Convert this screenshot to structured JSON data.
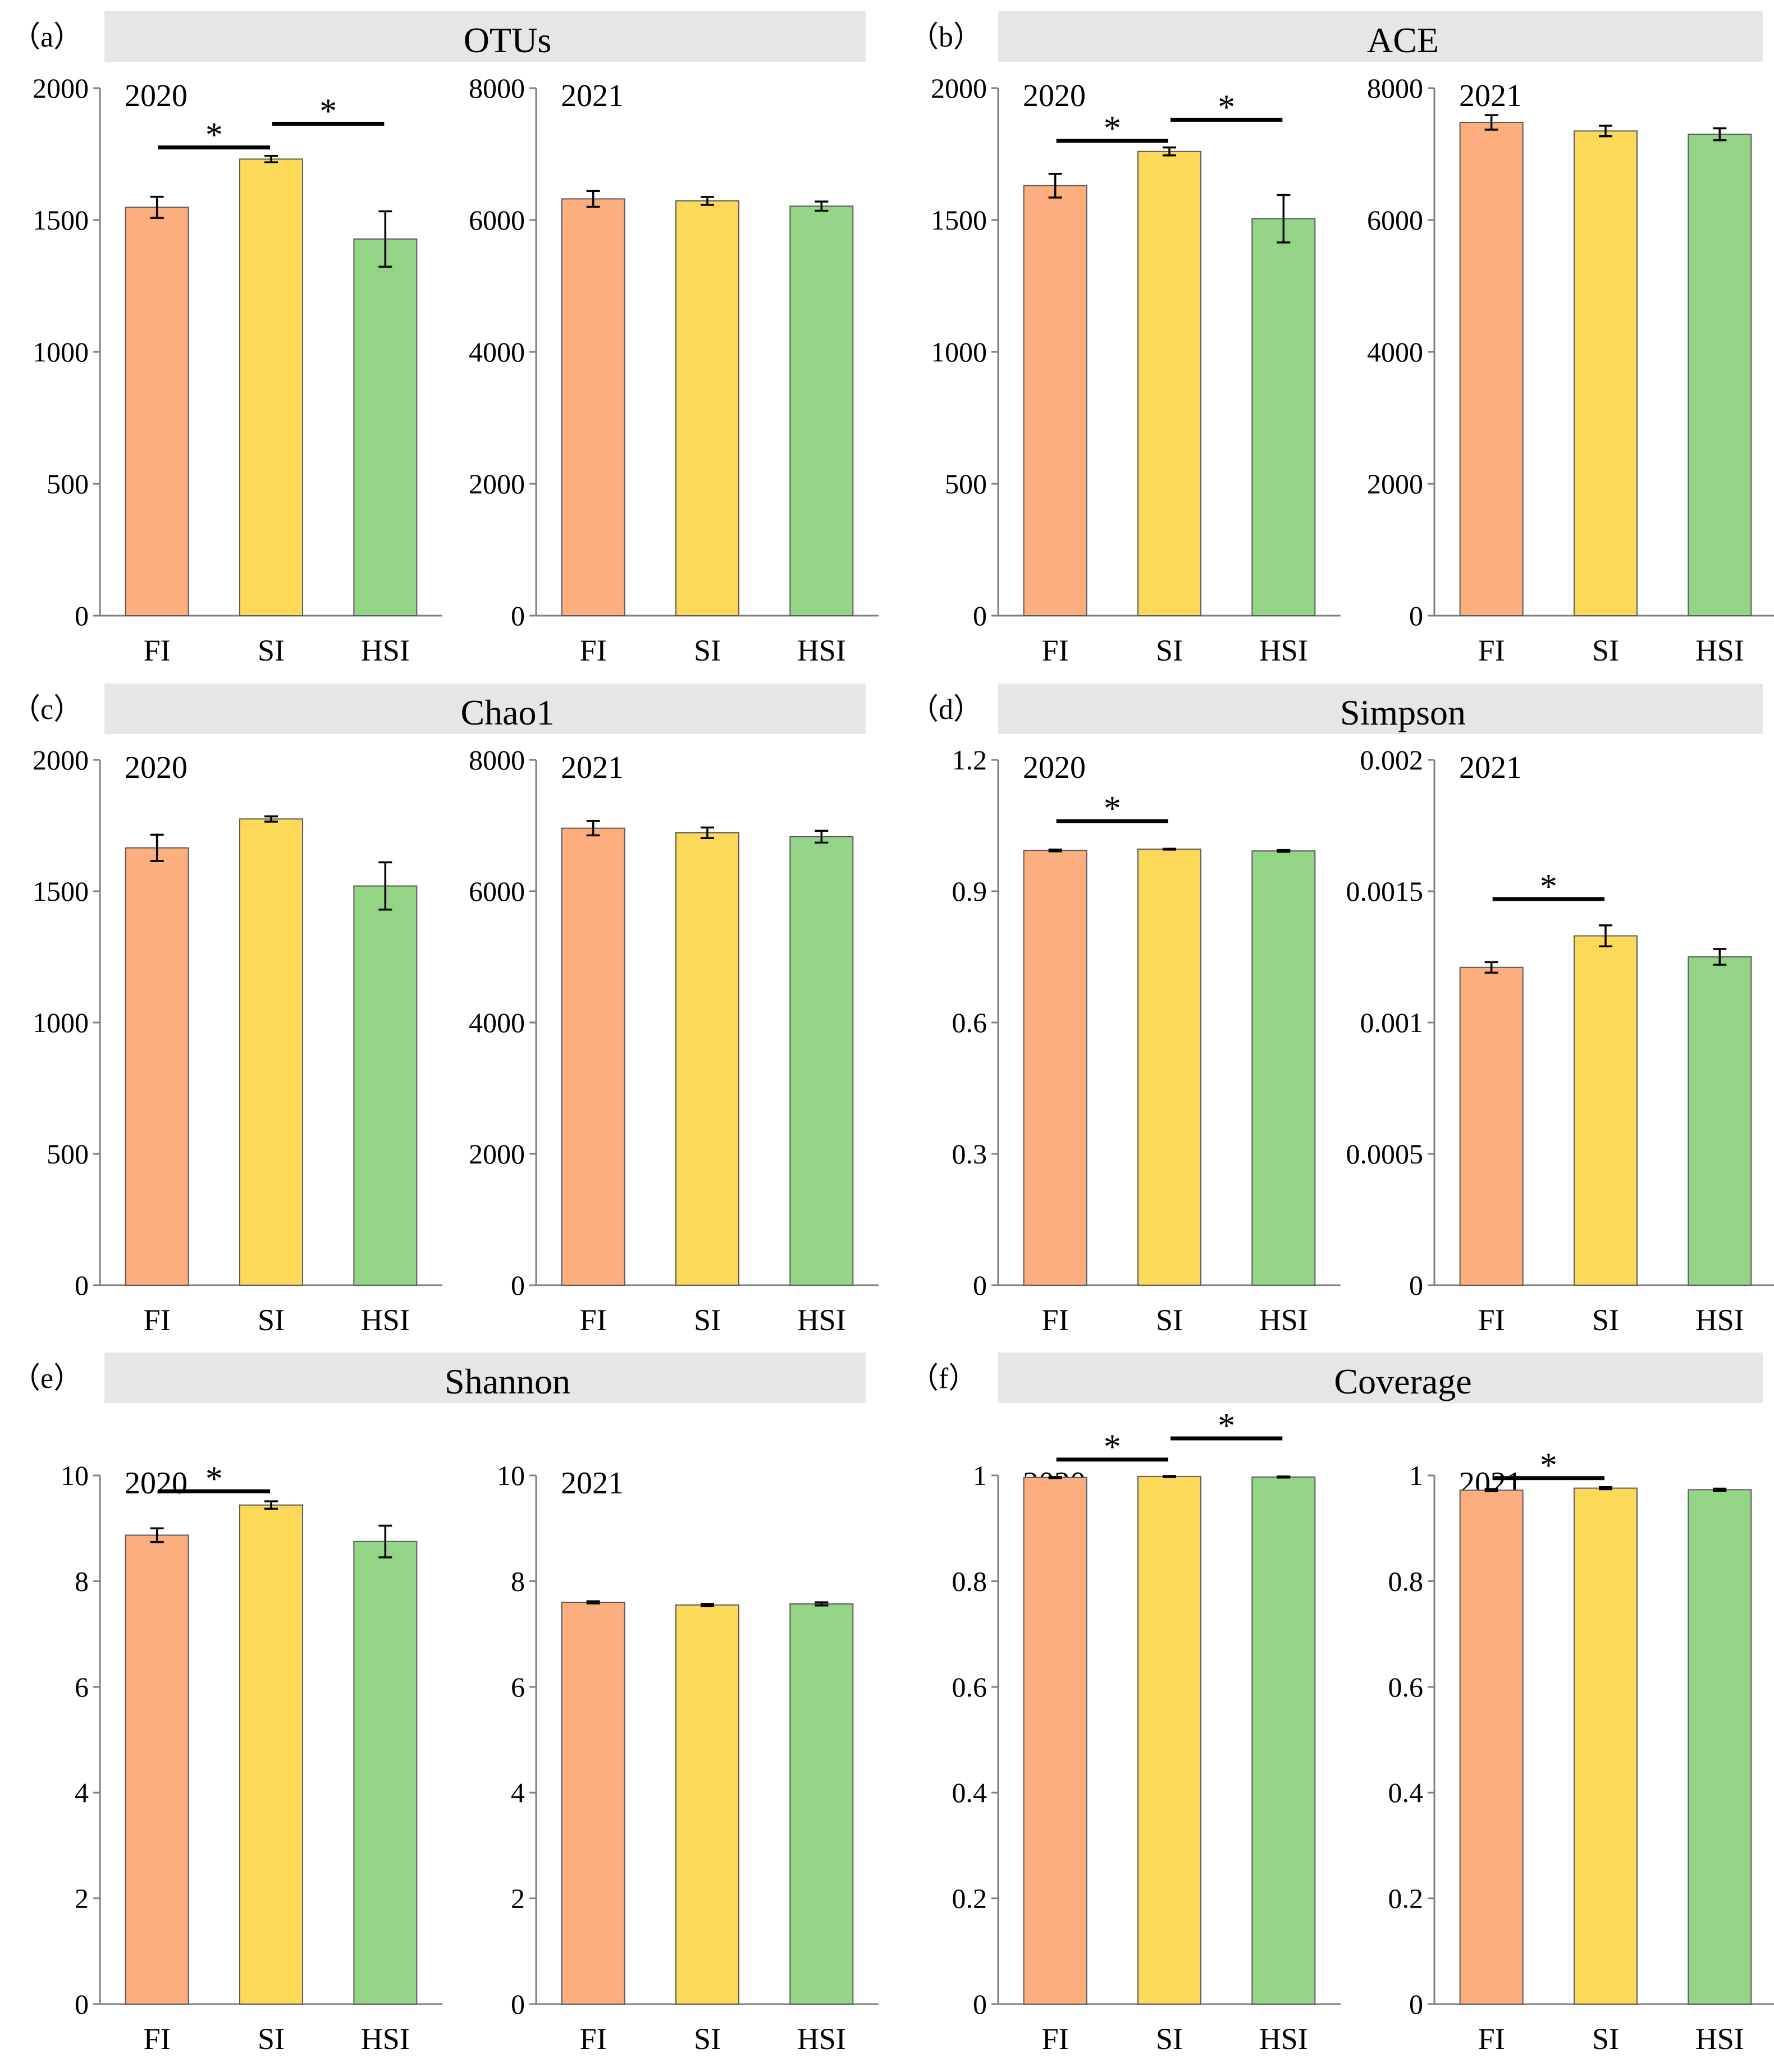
{
  "figure": {
    "groups": [
      "FI",
      "SI",
      "HSI"
    ],
    "colors": {
      "FI": "#FDAE7E",
      "SI": "#FDD95A",
      "HSI": "#93D487",
      "axis": "#7F7F7F",
      "title_bar": "#E6E6E6"
    }
  },
  "chart_data": [
    {
      "type": "bar",
      "panel": "a",
      "panel_label": "（a）",
      "title": "OTUs",
      "subplots": [
        {
          "year": "2020",
          "categories": [
            "FI",
            "SI",
            "HSI"
          ],
          "values": [
            1548,
            1731,
            1428
          ],
          "errors": [
            40,
            12,
            105
          ],
          "ylim": [
            0,
            2000
          ],
          "yticks": [
            0,
            500,
            1000,
            1500,
            2000
          ],
          "ytick_labels": [
            "0",
            "500",
            "1000",
            "1500",
            "2000"
          ],
          "significance": [
            {
              "between": [
                "FI",
                "SI"
              ],
              "label": "*",
              "y": 1775
            },
            {
              "between": [
                "SI",
                "HSI"
              ],
              "label": "*",
              "y": 1865
            }
          ]
        },
        {
          "year": "2021",
          "categories": [
            "FI",
            "SI",
            "HSI"
          ],
          "values": [
            6320,
            6290,
            6210
          ],
          "errors": [
            120,
            60,
            70
          ],
          "ylim": [
            0,
            8000
          ],
          "yticks": [
            0,
            2000,
            4000,
            6000,
            8000
          ],
          "ytick_labels": [
            "0",
            "2000",
            "4000",
            "6000",
            "8000"
          ],
          "significance": []
        }
      ]
    },
    {
      "type": "bar",
      "panel": "b",
      "panel_label": "（b）",
      "title": "ACE",
      "subplots": [
        {
          "year": "2020",
          "categories": [
            "FI",
            "SI",
            "HSI"
          ],
          "values": [
            1630,
            1760,
            1505
          ],
          "errors": [
            45,
            15,
            90
          ],
          "ylim": [
            0,
            2000
          ],
          "yticks": [
            0,
            500,
            1000,
            1500,
            2000
          ],
          "ytick_labels": [
            "0",
            "500",
            "1000",
            "1500",
            "2000"
          ],
          "significance": [
            {
              "between": [
                "FI",
                "SI"
              ],
              "label": "*",
              "y": 1800
            },
            {
              "between": [
                "SI",
                "HSI"
              ],
              "label": "*",
              "y": 1880
            }
          ]
        },
        {
          "year": "2021",
          "categories": [
            "FI",
            "SI",
            "HSI"
          ],
          "values": [
            7480,
            7350,
            7300
          ],
          "errors": [
            110,
            80,
            90
          ],
          "ylim": [
            0,
            8000
          ],
          "yticks": [
            0,
            2000,
            4000,
            6000,
            8000
          ],
          "ytick_labels": [
            "0",
            "2000",
            "4000",
            "6000",
            "8000"
          ],
          "significance": []
        }
      ]
    },
    {
      "type": "bar",
      "panel": "c",
      "panel_label": "（c）",
      "title": "Chao1",
      "subplots": [
        {
          "year": "2020",
          "categories": [
            "FI",
            "SI",
            "HSI"
          ],
          "values": [
            1665,
            1775,
            1520
          ],
          "errors": [
            50,
            10,
            90
          ],
          "ylim": [
            0,
            2000
          ],
          "yticks": [
            0,
            500,
            1000,
            1500,
            2000
          ],
          "ytick_labels": [
            "0",
            "500",
            "1000",
            "1500",
            "2000"
          ],
          "significance": []
        },
        {
          "year": "2021",
          "categories": [
            "FI",
            "SI",
            "HSI"
          ],
          "values": [
            6960,
            6890,
            6830
          ],
          "errors": [
            110,
            80,
            90
          ],
          "ylim": [
            0,
            8000
          ],
          "yticks": [
            0,
            2000,
            4000,
            6000,
            8000
          ],
          "ytick_labels": [
            "0",
            "2000",
            "4000",
            "6000",
            "8000"
          ],
          "significance": []
        }
      ]
    },
    {
      "type": "bar",
      "panel": "d",
      "panel_label": "（d）",
      "title": "Simpson",
      "subplots": [
        {
          "year": "2020",
          "categories": [
            "FI",
            "SI",
            "HSI"
          ],
          "values": [
            0.993,
            0.996,
            0.992
          ],
          "errors": [
            0.002,
            0.001,
            0.002
          ],
          "ylim": [
            0,
            1.2
          ],
          "yticks": [
            0,
            0.3,
            0.6,
            0.9,
            1.2
          ],
          "ytick_labels": [
            "0",
            "0.3",
            "0.6",
            "0.9",
            "1.2"
          ],
          "significance": [
            {
              "between": [
                "FI",
                "SI"
              ],
              "label": "*",
              "y": 1.06
            }
          ]
        },
        {
          "year": "2021",
          "categories": [
            "FI",
            "SI",
            "HSI"
          ],
          "values": [
            0.00121,
            0.00133,
            0.00125
          ],
          "errors": [
            2e-05,
            4e-05,
            3e-05
          ],
          "ylim": [
            0,
            0.002
          ],
          "yticks": [
            0,
            0.0005,
            0.001,
            0.0015,
            0.002
          ],
          "ytick_labels": [
            "0",
            "0.0005",
            "0.001",
            "0.0015",
            "0.002"
          ],
          "significance": [
            {
              "between": [
                "FI",
                "SI"
              ],
              "label": "*",
              "y": 0.00147
            }
          ]
        }
      ]
    },
    {
      "type": "bar",
      "panel": "e",
      "panel_label": "（e）",
      "title": "Shannon",
      "subplots": [
        {
          "year": "2020",
          "categories": [
            "FI",
            "SI",
            "HSI"
          ],
          "values": [
            8.87,
            9.44,
            8.75
          ],
          "errors": [
            0.13,
            0.07,
            0.3
          ],
          "ylim": [
            0,
            10
          ],
          "yticks": [
            0,
            2,
            4,
            6,
            8,
            10
          ],
          "ytick_labels": [
            "0",
            "2",
            "4",
            "6",
            "8",
            "10"
          ],
          "significance": [
            {
              "between": [
                "FI",
                "SI"
              ],
              "label": "*",
              "y": 9.7
            }
          ]
        },
        {
          "year": "2021",
          "categories": [
            "FI",
            "SI",
            "HSI"
          ],
          "values": [
            7.6,
            7.55,
            7.57
          ],
          "errors": [
            0.02,
            0.02,
            0.03
          ],
          "ylim": [
            0,
            10
          ],
          "yticks": [
            0,
            2,
            4,
            6,
            8,
            10
          ],
          "ytick_labels": [
            "0",
            "2",
            "4",
            "6",
            "8",
            "10"
          ],
          "significance": []
        }
      ]
    },
    {
      "type": "bar",
      "panel": "f",
      "panel_label": "（f）",
      "title": "Coverage",
      "subplots": [
        {
          "year": "2020",
          "categories": [
            "FI",
            "SI",
            "HSI"
          ],
          "values": [
            0.996,
            0.998,
            0.997
          ],
          "errors": [
            0.001,
            0.001,
            0.001
          ],
          "ylim": [
            0,
            1
          ],
          "yticks": [
            0,
            0.2,
            0.4,
            0.6,
            0.8,
            1
          ],
          "ytick_labels": [
            "0",
            "0.2",
            "0.4",
            "0.6",
            "0.8",
            "1"
          ],
          "significance": [
            {
              "between": [
                "FI",
                "SI"
              ],
              "label": "*",
              "y": 1.03
            },
            {
              "between": [
                "SI",
                "HSI"
              ],
              "label": "*",
              "y": 1.07
            }
          ]
        },
        {
          "year": "2021",
          "categories": [
            "FI",
            "SI",
            "HSI"
          ],
          "values": [
            0.972,
            0.976,
            0.973
          ],
          "errors": [
            0.002,
            0.002,
            0.002
          ],
          "ylim": [
            0,
            1
          ],
          "yticks": [
            0,
            0.2,
            0.4,
            0.6,
            0.8,
            1
          ],
          "ytick_labels": [
            "0",
            "0.2",
            "0.4",
            "0.6",
            "0.8",
            "1"
          ],
          "significance": [
            {
              "between": [
                "FI",
                "SI"
              ],
              "label": "*",
              "y": 0.995
            }
          ]
        }
      ]
    }
  ]
}
